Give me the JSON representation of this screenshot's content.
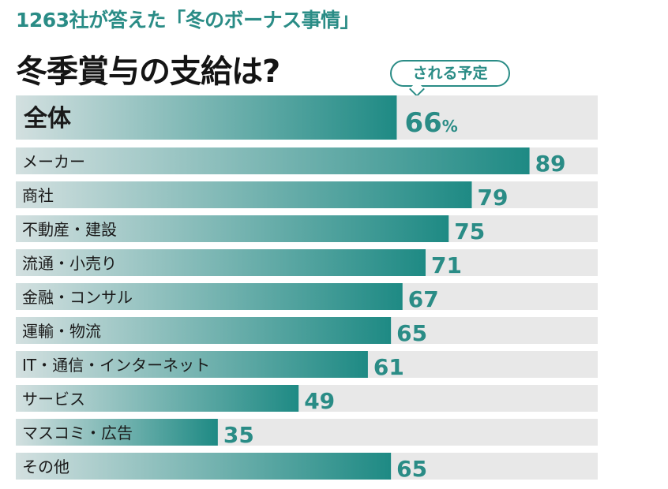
{
  "header": {
    "subtitle": "1263社が答えた「冬のボーナス事情」",
    "title": "冬季賞与の支給は?",
    "callout": "される予定"
  },
  "chart_data": {
    "type": "bar",
    "orientation": "horizontal",
    "xlim": [
      0,
      100
    ],
    "grid": false,
    "unit": "%",
    "total": {
      "label": "全体",
      "value": 66
    },
    "categories": [
      "メーカー",
      "商社",
      "不動産・建設",
      "流通・小売り",
      "金融・コンサル",
      "運輸・物流",
      "IT・通信・インターネット",
      "サービス",
      "マスコミ・広告",
      "その他"
    ],
    "values": [
      89,
      79,
      75,
      71,
      67,
      65,
      61,
      49,
      35,
      65
    ]
  },
  "colors": {
    "track": "#e8e8e8",
    "bar_start": "#d3e0e0",
    "bar_end": "#1e8a84",
    "value_text": "#2a8c86",
    "label_text": "#1a1a1a"
  }
}
